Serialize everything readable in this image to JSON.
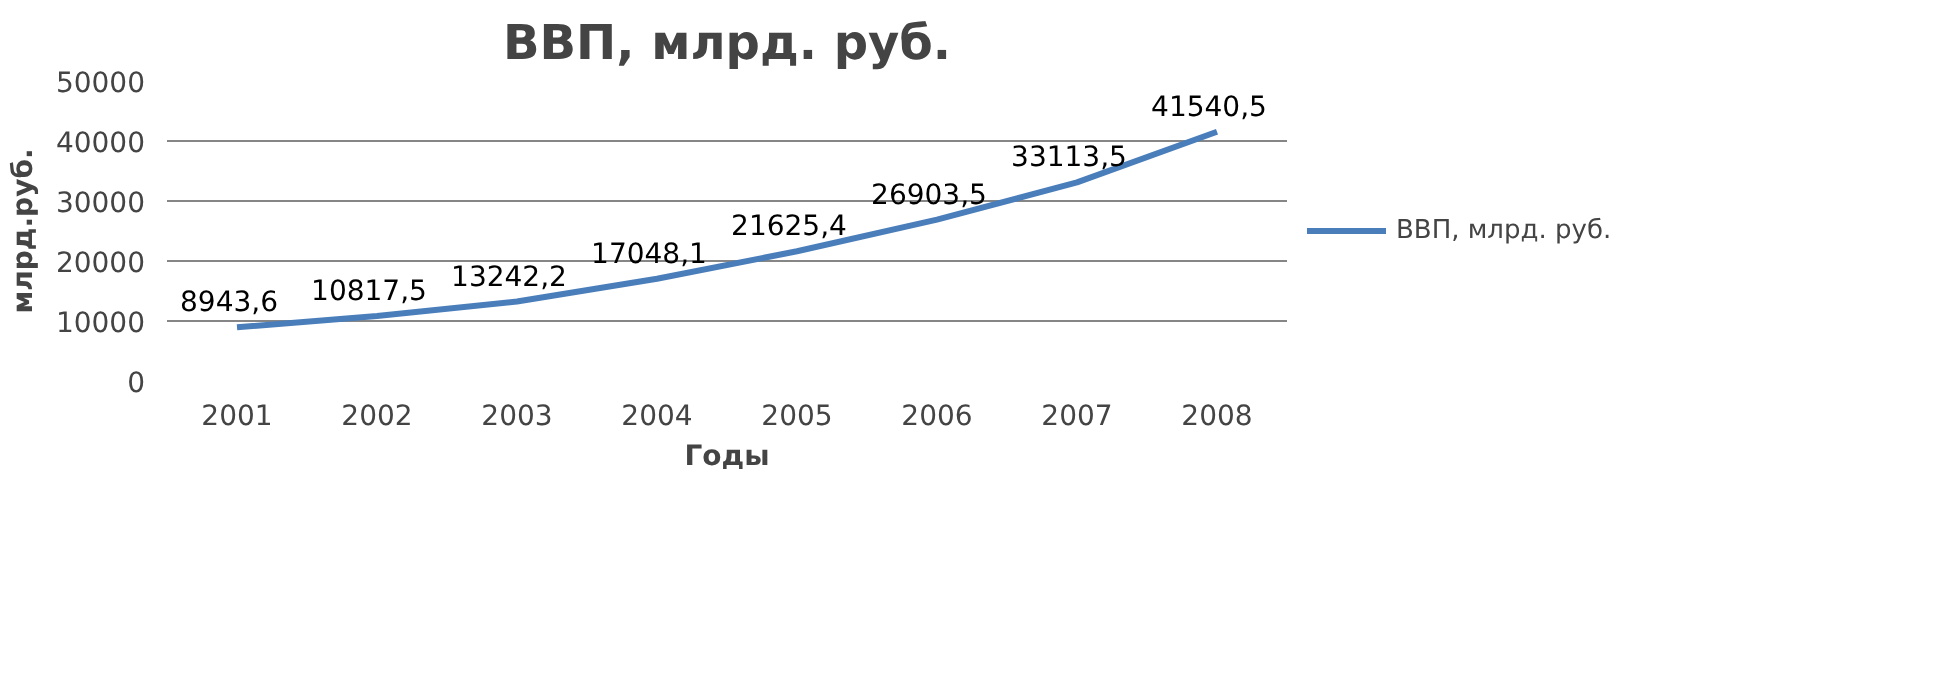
{
  "chart_data": {
    "type": "line",
    "title": "ВВП, млрд. руб.",
    "xlabel": "Годы",
    "ylabel": "млрд.руб.",
    "categories": [
      "2001",
      "2002",
      "2003",
      "2004",
      "2005",
      "2006",
      "2007",
      "2008"
    ],
    "series": [
      {
        "name": "ВВП, млрд. руб.",
        "color": "#4a7ebb",
        "values": [
          8943.6,
          10817.5,
          13242.2,
          17048.1,
          21625.4,
          26903.5,
          33113.5,
          41540.5
        ],
        "value_labels": [
          "8943,6",
          "10817,5",
          "13242,2",
          "17048,1",
          "21625,4",
          "26903,5",
          "33113,5",
          "41540,5"
        ]
      }
    ],
    "ylim": [
      0,
      50000
    ],
    "yticks": [
      0,
      10000,
      20000,
      30000,
      40000,
      50000
    ],
    "grid": "y",
    "legend": "right",
    "marker": "none",
    "line_style": "solid"
  }
}
